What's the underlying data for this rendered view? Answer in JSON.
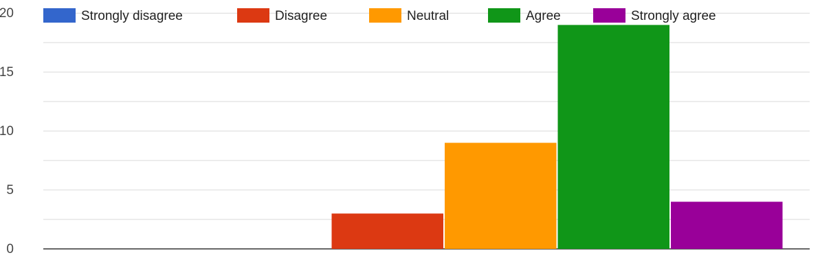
{
  "chart_data": {
    "type": "bar",
    "categories": [
      ""
    ],
    "series": [
      {
        "name": "Strongly disagree",
        "color": "#3366cc",
        "values": [
          0
        ]
      },
      {
        "name": "Disagree",
        "color": "#dc3912",
        "values": [
          3
        ]
      },
      {
        "name": "Neutral",
        "color": "#ff9900",
        "values": [
          9
        ]
      },
      {
        "name": "Agree",
        "color": "#109618",
        "values": [
          19
        ]
      },
      {
        "name": "Strongly agree",
        "color": "#990099",
        "values": [
          4
        ]
      }
    ],
    "yticks": [
      "0",
      "5",
      "10",
      "15",
      "20"
    ],
    "ylim": [
      0,
      20
    ],
    "grid": true,
    "legend_position": "top",
    "title": "",
    "xlabel": "",
    "ylabel": ""
  }
}
